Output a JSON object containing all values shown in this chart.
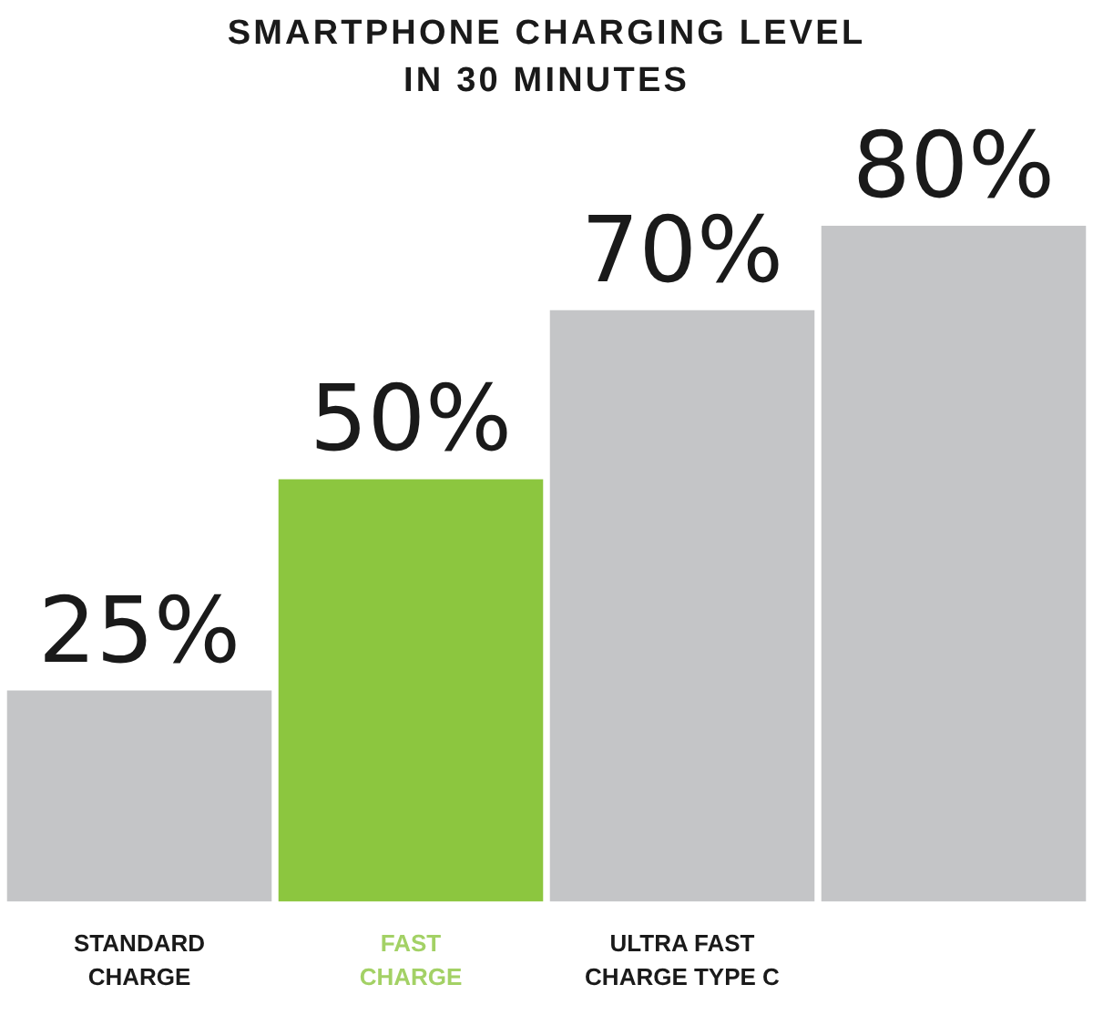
{
  "chart_data": {
    "type": "bar",
    "title": "SMARTPHONE CHARGING LEVEL IN 30 MINUTES",
    "categories": [
      "STANDARD CHARGE",
      "FAST CHARGE",
      "ULTRA FAST CHARGE TYPE C",
      null
    ],
    "values": [
      25,
      50,
      70,
      80
    ],
    "colors": [
      "#c4c5c7",
      "#8cc63f",
      "#c4c5c7",
      "#c4c5c7"
    ],
    "value_labels": [
      "25%",
      "50%",
      "70%",
      "80%"
    ],
    "tick_labels": "x",
    "legend": false
  }
}
